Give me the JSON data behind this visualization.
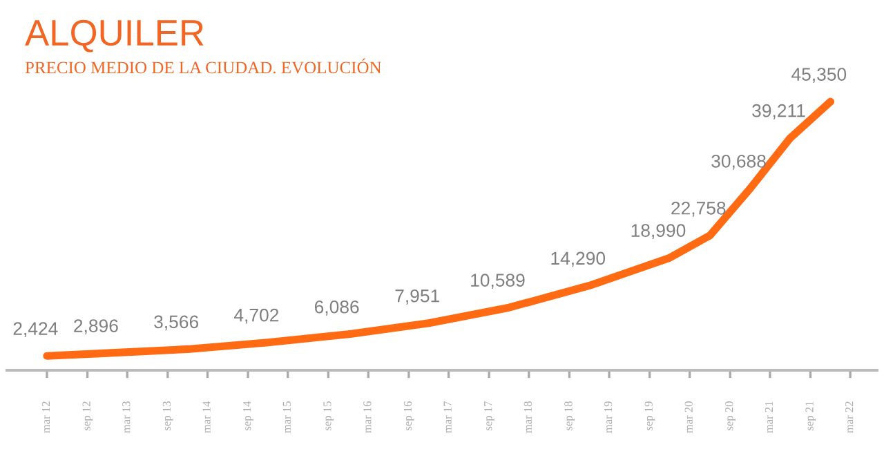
{
  "chart_data": {
    "type": "line",
    "title": "ALQUILER",
    "subtitle": "PRECIO MEDIO DE LA CIUDAD. EVOLUCIÓN",
    "x": [
      "2012-03",
      "2012-12",
      "2013-12",
      "2014-12",
      "2015-12",
      "2016-12",
      "2017-12",
      "2018-12",
      "2019-12",
      "2020-06",
      "2020-12",
      "2021-06",
      "2021-12"
    ],
    "series": [
      {
        "color": "#ff6a13",
        "values": [
          2424,
          2896,
          3566,
          4702,
          6086,
          7951,
          10589,
          14290,
          18990,
          22758,
          30688,
          39211,
          45350
        ],
        "value_labels": [
          "2,424",
          "2,896",
          "3,566",
          "4,702",
          "6,086",
          "7,951",
          "10,589",
          "14,290",
          "18,990",
          "22,758",
          "30,688",
          "39,211",
          "45,350"
        ]
      }
    ],
    "grid": false,
    "legend": false,
    "marker": "none",
    "line_style": "solid",
    "tick_labels": "x",
    "xlim": [
      "2011-09",
      "2022-07"
    ],
    "xticks": [
      {
        "value": "2012-03",
        "label": "mar 12"
      },
      {
        "value": "2012-09",
        "label": "sep 12"
      },
      {
        "value": "2013-03",
        "label": "mar 13"
      },
      {
        "value": "2013-09",
        "label": "sep 13"
      },
      {
        "value": "2014-03",
        "label": "mar 14"
      },
      {
        "value": "2014-09",
        "label": "sep 14"
      },
      {
        "value": "2015-03",
        "label": "mar 15"
      },
      {
        "value": "2015-09",
        "label": "sep 15"
      },
      {
        "value": "2016-03",
        "label": "mar 16"
      },
      {
        "value": "2016-09",
        "label": "sep 16"
      },
      {
        "value": "2017-03",
        "label": "mar 17"
      },
      {
        "value": "2017-09",
        "label": "sep 17"
      },
      {
        "value": "2018-03",
        "label": "mar 18"
      },
      {
        "value": "2018-09",
        "label": "sep 18"
      },
      {
        "value": "2019-03",
        "label": "mar 19"
      },
      {
        "value": "2019-09",
        "label": "sep 19"
      },
      {
        "value": "2020-03",
        "label": "mar 20"
      },
      {
        "value": "2020-09",
        "label": "sep 20"
      },
      {
        "value": "2021-03",
        "label": "mar 21"
      },
      {
        "value": "2021-09",
        "label": "sep 21"
      },
      {
        "value": "2022-03",
        "label": "mar 22"
      }
    ]
  }
}
